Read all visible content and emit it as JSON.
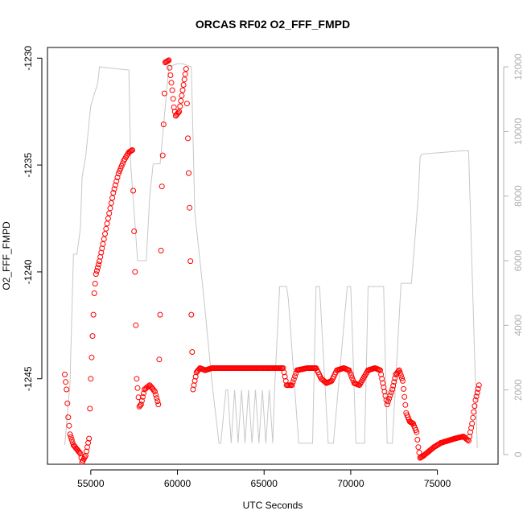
{
  "chart_data": {
    "type": "scatter",
    "title": "ORCAS RF02 O2_FFF_FMPD",
    "xlabel": "UTC Seconds",
    "ylabel": "O2_FFF_FMPD",
    "xlim": [
      52500,
      78500
    ],
    "ylim": [
      -1249,
      -1229.5
    ],
    "y2lim": [
      -300,
      12600
    ],
    "x_ticks": [
      55000,
      60000,
      65000,
      70000,
      75000
    ],
    "y_ticks": [
      -1230,
      -1235,
      -1240,
      -1245
    ],
    "y2_ticks": [
      0,
      2000,
      4000,
      6000,
      8000,
      10000,
      12000
    ],
    "series": [
      {
        "kind": "points",
        "color": "#ff0000",
        "marker": "open-circle",
        "x": [
          53500,
          53600,
          53700,
          53800,
          54000,
          54200,
          54400,
          54500,
          54700,
          54900,
          55000,
          55100,
          55200,
          55300,
          55500,
          55700,
          56000,
          56300,
          56600,
          56900,
          57200,
          57400,
          57550,
          57650,
          57800,
          57900,
          58100,
          58400,
          58700,
          58900,
          59000,
          59100,
          59300,
          59500,
          59600,
          59700,
          59800,
          59900,
          60100,
          60300,
          60500,
          60700,
          60800,
          60900,
          61100,
          61300,
          61600,
          62000,
          62500,
          63000,
          63500,
          64000,
          64500,
          65000,
          65500,
          65800,
          66100,
          66300,
          66600,
          66900,
          67500,
          68000,
          68300,
          68600,
          68900,
          69200,
          69600,
          69900,
          70200,
          70500,
          71000,
          71400,
          71700,
          71900,
          72100,
          72400,
          72600,
          72800,
          73000,
          73200,
          73400,
          73600,
          73800,
          73900,
          74000,
          74200,
          74500,
          74800,
          75200,
          75600,
          76000,
          76500,
          76800,
          77000,
          77200,
          77400
        ],
        "y": [
          -1244.8,
          -1245.5,
          -1246.8,
          -1247.6,
          -1248.1,
          -1248.3,
          -1248.5,
          -1248.9,
          -1248.6,
          -1247.8,
          -1245.0,
          -1243.0,
          -1241.0,
          -1240.1,
          -1239.5,
          -1238.7,
          -1237.5,
          -1236.3,
          -1235.4,
          -1234.8,
          -1234.4,
          -1234.3,
          -1240.0,
          -1245.0,
          -1246.3,
          -1246.2,
          -1245.5,
          -1245.3,
          -1245.6,
          -1246.2,
          -1242.0,
          -1236.0,
          -1230.2,
          -1230.1,
          -1230.8,
          -1231.5,
          -1232.3,
          -1232.7,
          -1232.5,
          -1231.5,
          -1230.5,
          -1237.0,
          -1242.0,
          -1245.5,
          -1244.7,
          -1244.5,
          -1244.6,
          -1244.5,
          -1244.5,
          -1244.5,
          -1244.5,
          -1244.5,
          -1244.5,
          -1244.5,
          -1244.5,
          -1244.5,
          -1244.5,
          -1245.3,
          -1245.3,
          -1244.6,
          -1244.5,
          -1244.5,
          -1245.0,
          -1245.2,
          -1245.1,
          -1244.6,
          -1244.5,
          -1244.6,
          -1245.2,
          -1245.3,
          -1244.6,
          -1244.5,
          -1244.6,
          -1245.4,
          -1246.2,
          -1245.5,
          -1244.8,
          -1244.6,
          -1245.1,
          -1246.6,
          -1247.0,
          -1247.1,
          -1247.5,
          -1248.2,
          -1248.7,
          -1248.6,
          -1248.4,
          -1248.2,
          -1248.0,
          -1247.9,
          -1247.8,
          -1247.7,
          -1247.9,
          -1247.1,
          -1246.0,
          -1245.3
        ]
      },
      {
        "kind": "line",
        "color": "#c8c8c8",
        "axis": "right",
        "x": [
          53500,
          53800,
          54000,
          54100,
          54200,
          54400,
          54500,
          54700,
          55000,
          55400,
          55500,
          57200,
          57300,
          57700,
          57900,
          58200,
          58400,
          58600,
          59000,
          59300,
          59500,
          60000,
          60300,
          60800,
          61000,
          61500,
          62000,
          62400,
          62500,
          62800,
          62900,
          63100,
          63300,
          63500,
          63700,
          63900,
          64100,
          64300,
          64500,
          64700,
          64900,
          65100,
          65300,
          65500,
          65600,
          65900,
          66300,
          66400,
          66800,
          67000,
          67800,
          68000,
          68200,
          68700,
          69000,
          69800,
          70000,
          70300,
          70800,
          71000,
          71900,
          72100,
          72400,
          72900,
          73100,
          73300,
          73500,
          73900,
          74000,
          74100,
          76400,
          76800,
          77300
        ],
        "y": [
          300,
          2200,
          6200,
          6200,
          6200,
          7000,
          8600,
          9200,
          10800,
          11500,
          12000,
          11900,
          9000,
          6000,
          6000,
          6000,
          8000,
          9000,
          9000,
          10800,
          12000,
          12100,
          12100,
          12000,
          7500,
          5000,
          2200,
          350,
          350,
          2000,
          2000,
          350,
          2000,
          350,
          2000,
          350,
          2000,
          350,
          2000,
          350,
          2000,
          350,
          2000,
          350,
          2000,
          5200,
          5200,
          4800,
          1800,
          350,
          350,
          5200,
          5200,
          350,
          350,
          5200,
          5200,
          350,
          350,
          5200,
          5200,
          350,
          350,
          5300,
          5300,
          5300,
          5300,
          8000,
          9200,
          9300,
          9400,
          9400,
          200
        ]
      }
    ]
  }
}
